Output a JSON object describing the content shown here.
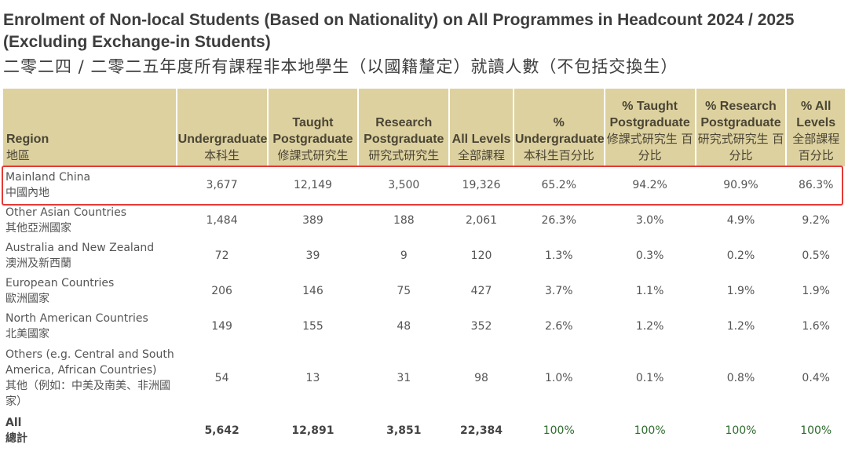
{
  "title_en": "Enrolment of Non-local Students (Based on Nationality) on All Programmes in Headcount 2024 / 2025 (Excluding Exchange-in Students)",
  "title_zh": "二零二四 / 二零二五年度所有課程非本地學生（以國籍釐定）就讀人數（不包括交換生）",
  "headers": [
    {
      "en": "Region",
      "zh": "地區"
    },
    {
      "en": "Undergraduate",
      "zh": "本科生"
    },
    {
      "en": "Taught Postgraduate",
      "zh": "修課式研究生"
    },
    {
      "en": "Research Postgraduate",
      "zh": "研究式研究生"
    },
    {
      "en": "All Levels",
      "zh": "全部課程"
    },
    {
      "en": "% Undergraduate",
      "zh": "本科生百分比"
    },
    {
      "en": "% Taught Postgraduate",
      "zh": "修課式研究生 百分比"
    },
    {
      "en": "% Research Postgraduate",
      "zh": "研究式研究生 百分比"
    },
    {
      "en": "% All Levels",
      "zh": "全部課程 百分比"
    }
  ],
  "rows": [
    {
      "region_en": "Mainland China",
      "region_zh": "中國內地",
      "values": [
        "3,677",
        "12,149",
        "3,500",
        "19,326",
        "65.2%",
        "94.2%",
        "90.9%",
        "86.3%"
      ],
      "highlighted": true
    },
    {
      "region_en": "Other Asian Countries",
      "region_zh": "其他亞洲國家",
      "values": [
        "1,484",
        "389",
        "188",
        "2,061",
        "26.3%",
        "3.0%",
        "4.9%",
        "9.2%"
      ]
    },
    {
      "region_en": "Australia and New Zealand",
      "region_zh": "澳洲及新西蘭",
      "values": [
        "72",
        "39",
        "9",
        "120",
        "1.3%",
        "0.3%",
        "0.2%",
        "0.5%"
      ]
    },
    {
      "region_en": "European Countries",
      "region_zh": "歐洲國家",
      "values": [
        "206",
        "146",
        "75",
        "427",
        "3.7%",
        "1.1%",
        "1.9%",
        "1.9%"
      ]
    },
    {
      "region_en": "North American Countries",
      "region_zh": "北美國家",
      "values": [
        "149",
        "155",
        "48",
        "352",
        "2.6%",
        "1.2%",
        "1.2%",
        "1.6%"
      ]
    },
    {
      "region_en": "Others (e.g. Central and South America, African Countries)",
      "region_zh": "其他（例如：中美及南美、非洲國家）",
      "values": [
        "54",
        "13",
        "31",
        "98",
        "1.0%",
        "0.1%",
        "0.8%",
        "0.4%"
      ]
    }
  ],
  "total": {
    "region_en": "All",
    "region_zh": "總計",
    "values": [
      "5,642",
      "12,891",
      "3,851",
      "22,384",
      "100%",
      "100%",
      "100%",
      "100%"
    ]
  },
  "colors": {
    "header_bg": "#ddd1a0",
    "highlight_border": "#e53935",
    "total_pct": "#2e6b2e"
  }
}
